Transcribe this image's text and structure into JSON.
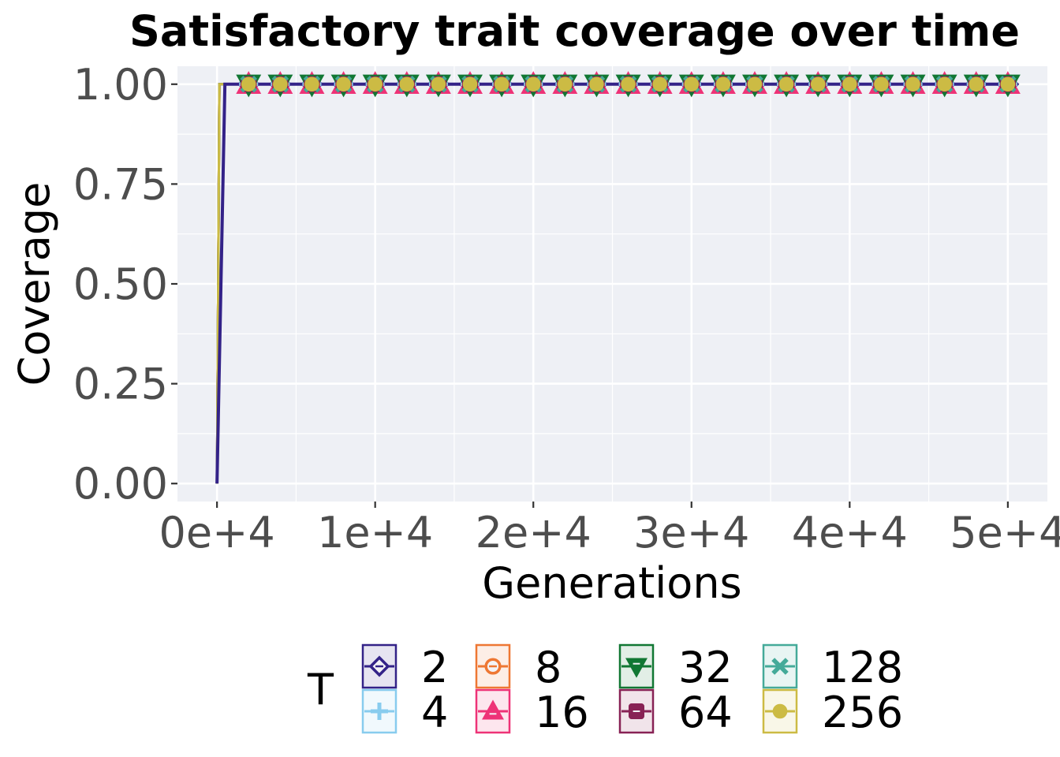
{
  "colors": {
    "panel_bg": "#eef0f5",
    "grid": "#ffffff",
    "axis_tick": "#333333"
  },
  "chart_data": {
    "type": "line",
    "title": "Satisfactory trait coverage over time",
    "xlabel": "Generations",
    "ylabel": "Coverage",
    "xlim": [
      -2500,
      52500
    ],
    "ylim": [
      -0.045,
      1.045
    ],
    "x_ticks": [
      0,
      10000,
      20000,
      30000,
      40000,
      50000
    ],
    "x_tick_labels": [
      "0e+4",
      "1e+4",
      "2e+4",
      "3e+4",
      "4e+4",
      "5e+4"
    ],
    "y_ticks": [
      0,
      0.25,
      0.5,
      0.75,
      1
    ],
    "y_tick_labels": [
      "0.00",
      "0.25",
      "0.50",
      "0.75",
      "1.00"
    ],
    "grid": true,
    "legend": {
      "title": "T",
      "position": "bottom",
      "columns": 4
    },
    "series": [
      {
        "name": "2",
        "color": "#332288",
        "marker": "diamond",
        "step_at": 500,
        "x": [
          0,
          500,
          50000
        ],
        "y": [
          0,
          1,
          1
        ]
      },
      {
        "name": "4",
        "color": "#88CCEE",
        "marker": "plus",
        "step_at": 150,
        "x": [
          0,
          150,
          50000
        ],
        "y": [
          0,
          1,
          1
        ]
      },
      {
        "name": "8",
        "color": "#EE7733",
        "marker": "circle-minus",
        "step_at": 150,
        "x": [
          0,
          150,
          50000
        ],
        "y": [
          0,
          1,
          1
        ]
      },
      {
        "name": "16",
        "color": "#EE3377",
        "marker": "triangle-up",
        "step_at": 150,
        "x": [
          0,
          150,
          50000
        ],
        "y": [
          0,
          1,
          1
        ]
      },
      {
        "name": "32",
        "color": "#117733",
        "marker": "triangle-down",
        "step_at": 150,
        "x": [
          0,
          150,
          50000
        ],
        "y": [
          0,
          1,
          1
        ]
      },
      {
        "name": "64",
        "color": "#882255",
        "marker": "square-minus",
        "step_at": 150,
        "x": [
          0,
          150,
          50000
        ],
        "y": [
          0,
          1,
          1
        ]
      },
      {
        "name": "128",
        "color": "#44AA99",
        "marker": "x",
        "step_at": 150,
        "x": [
          0,
          150,
          50000
        ],
        "y": [
          0,
          1,
          1
        ]
      },
      {
        "name": "256",
        "color": "#CCBB44",
        "marker": "circle",
        "step_at": 150,
        "x": [
          0,
          150,
          50000
        ],
        "y": [
          0,
          1,
          1
        ]
      }
    ],
    "marker_x": [
      2000,
      4000,
      6000,
      8000,
      10000,
      12000,
      14000,
      16000,
      18000,
      20000,
      22000,
      24000,
      26000,
      28000,
      30000,
      32000,
      34000,
      36000,
      38000,
      40000,
      42000,
      44000,
      46000,
      48000,
      50000
    ],
    "marker_y": 1.0
  }
}
